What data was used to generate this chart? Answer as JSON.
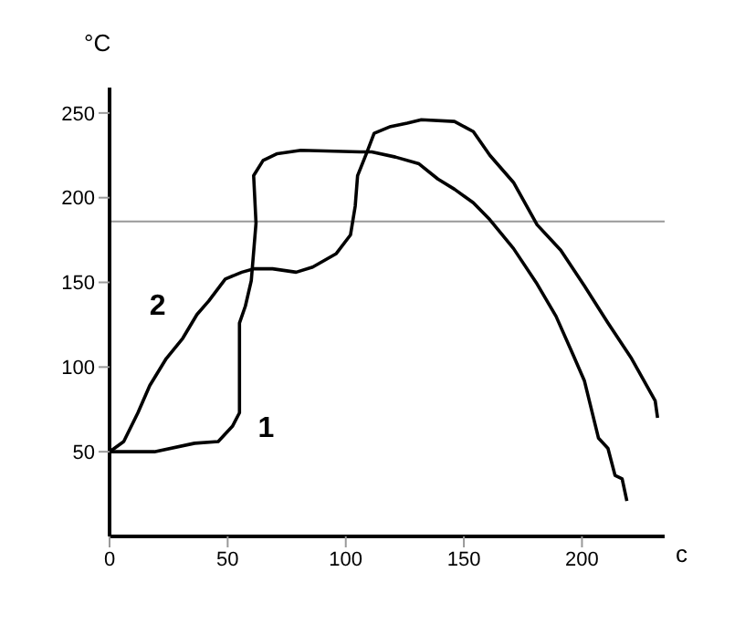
{
  "chart_data": {
    "type": "line",
    "xlabel": "c",
    "ylabel": "°C",
    "xlim": [
      0,
      235
    ],
    "ylim": [
      0,
      265
    ],
    "xticks": [
      0,
      50,
      100,
      150,
      200
    ],
    "yticks": [
      50,
      100,
      150,
      200,
      250
    ],
    "marker": "none",
    "line_style": "solid",
    "ref_lines": [
      {
        "axis": "y",
        "value": 186,
        "color": "#999999"
      }
    ],
    "series": [
      {
        "name": "1",
        "color": "#000000",
        "x": [
          0,
          19,
          36,
          46,
          52,
          55,
          55,
          57.5,
          60,
          62,
          61,
          65,
          71,
          81,
          106,
          111,
          121,
          131,
          139,
          146,
          154,
          161,
          171,
          181,
          189,
          196,
          201,
          207,
          211,
          214,
          217,
          219
        ],
        "values": [
          50,
          50,
          55,
          56,
          65,
          73,
          126,
          136,
          151,
          185,
          213,
          222,
          226,
          228,
          227,
          227,
          224,
          220,
          211,
          205,
          197,
          187,
          170,
          149,
          130,
          108,
          92,
          58,
          52,
          36,
          34,
          21
        ]
      },
      {
        "name": "2",
        "color": "#000000",
        "x": [
          0,
          6,
          12,
          17,
          24,
          31,
          37,
          42,
          49,
          56,
          61,
          69,
          79,
          86,
          96,
          102,
          104,
          105,
          109,
          112,
          119,
          126,
          132,
          146,
          154,
          161,
          171,
          181,
          191,
          201,
          211,
          221,
          231,
          232
        ],
        "values": [
          50,
          56,
          73,
          89,
          105,
          117,
          131,
          139,
          152,
          156,
          158,
          158,
          156,
          159,
          167,
          178,
          195,
          213,
          227,
          238,
          242,
          244,
          246,
          245,
          239,
          225,
          209,
          184,
          169,
          148,
          126,
          105,
          80,
          70
        ]
      }
    ]
  }
}
